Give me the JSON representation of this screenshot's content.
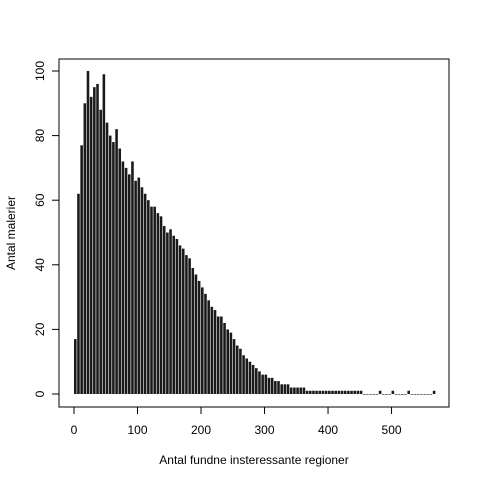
{
  "chart_data": {
    "type": "bar",
    "xlabel": "Antal fundne insteressante regioner",
    "ylabel": "Antal malerier",
    "xlim": [
      0,
      570
    ],
    "ylim": [
      0,
      100
    ],
    "xticks": [
      0,
      100,
      200,
      300,
      400,
      500
    ],
    "yticks": [
      0,
      20,
      40,
      60,
      80,
      100
    ],
    "bar_color": "#1a1a1a",
    "grid": false,
    "legend": "none",
    "x": [
      0,
      5,
      10,
      15,
      20,
      25,
      30,
      35,
      40,
      45,
      50,
      55,
      60,
      65,
      70,
      75,
      80,
      85,
      90,
      95,
      100,
      105,
      110,
      115,
      120,
      125,
      130,
      135,
      140,
      145,
      150,
      155,
      160,
      165,
      170,
      175,
      180,
      185,
      190,
      195,
      200,
      205,
      210,
      215,
      220,
      225,
      230,
      235,
      240,
      245,
      250,
      255,
      260,
      265,
      270,
      275,
      280,
      285,
      290,
      295,
      300,
      305,
      310,
      315,
      320,
      325,
      330,
      335,
      340,
      345,
      350,
      355,
      360,
      365,
      370,
      375,
      380,
      385,
      390,
      395,
      400,
      405,
      410,
      415,
      420,
      425,
      430,
      435,
      440,
      445,
      450,
      455,
      460,
      465,
      470,
      475,
      480,
      485,
      490,
      495,
      500,
      505,
      510,
      515,
      520,
      525,
      530,
      535,
      540,
      545,
      550,
      555,
      560,
      565
    ],
    "values": [
      17,
      62,
      77,
      90,
      100,
      92,
      95,
      96,
      88,
      99,
      84,
      80,
      78,
      82,
      76,
      72,
      70,
      68,
      72,
      66,
      67,
      64,
      62,
      60,
      58,
      58,
      56,
      55,
      52,
      50,
      51,
      49,
      48,
      46,
      45,
      43,
      42,
      39,
      37,
      35,
      33,
      31,
      29,
      27,
      26,
      24,
      24,
      22,
      20,
      19,
      17,
      15,
      14,
      12,
      11,
      10,
      9,
      8,
      7,
      6,
      6,
      5,
      5,
      4,
      4,
      3,
      3,
      3,
      2,
      2,
      2,
      2,
      2,
      1,
      1,
      1,
      1,
      1,
      1,
      1,
      1,
      1,
      1,
      1,
      1,
      1,
      1,
      1,
      1,
      1,
      1,
      0,
      0,
      0,
      0,
      0,
      1,
      0,
      0,
      0,
      1,
      0,
      0,
      0,
      0,
      1,
      0,
      0,
      0,
      0,
      0,
      0,
      0,
      1
    ]
  }
}
